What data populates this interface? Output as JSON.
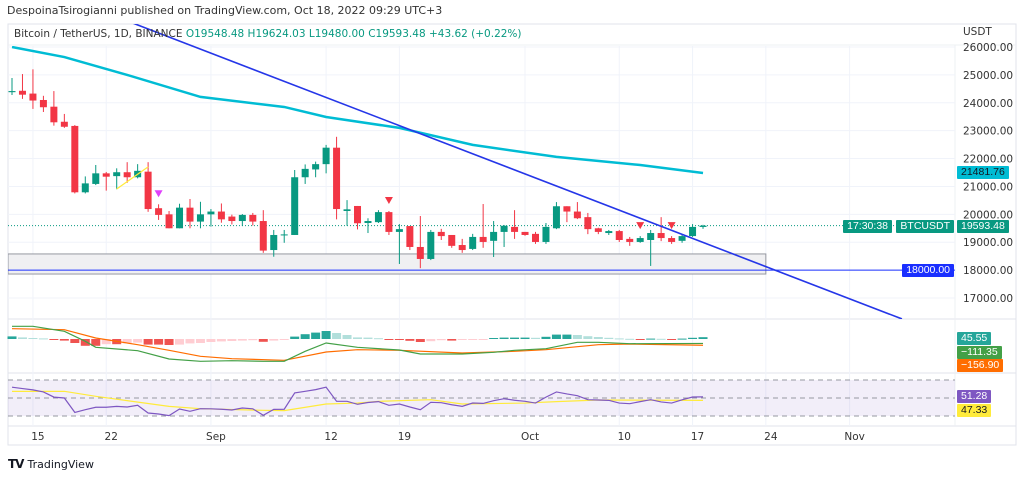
{
  "publish_line": "DespoinaTsirogianni published on TradingView.com, Oct 18, 2022 09:29 UTC+3",
  "header": {
    "symbol": "Bitcoin / TetherUS, 1D, BINANCE",
    "open": "O19548.48",
    "high": "H19624.03",
    "low": "L19480.00",
    "close": "C19593.48",
    "change": "+43.62 (+0.22%)"
  },
  "price_axis": {
    "currency": "USDT",
    "ticks": [
      "26000.00",
      "25000.00",
      "24000.00",
      "23000.00",
      "22000.00",
      "21000.00",
      "20000.00",
      "19000.00",
      "18000.00",
      "17000.00"
    ]
  },
  "time_axis": {
    "ticks": [
      {
        "date": "2022-08-15",
        "label": "15"
      },
      {
        "date": "2022-08-22",
        "label": "22"
      },
      {
        "date": "2022-09-01",
        "label": "Sep"
      },
      {
        "date": "2022-09-12",
        "label": "12"
      },
      {
        "date": "2022-09-19",
        "label": "19"
      },
      {
        "date": "2022-10-01",
        "label": "Oct"
      },
      {
        "date": "2022-10-10",
        "label": "10"
      },
      {
        "date": "2022-10-17",
        "label": "17"
      },
      {
        "date": "2022-10-24",
        "label": "24"
      },
      {
        "date": "2022-11-01",
        "label": "Nov"
      }
    ]
  },
  "labels": {
    "ema": "21481.76",
    "symbol": "BTCUSDT",
    "last_price": "19593.48",
    "countdown": "17:30:38",
    "support": "18000.00",
    "macd_hist": "45.55",
    "macd": "−111.35",
    "signal": "−156.90",
    "rsi": "51.28",
    "rsi_ma": "47.33"
  },
  "colors": {
    "up": "#089981",
    "down": "#f23645",
    "ema": "#00bcd4",
    "trendline": "#2536e8",
    "support_line": "#1a2fff",
    "macd": "#43a047",
    "signal": "#ff6d00",
    "hist_up_strong": "#26a69a",
    "hist_up_weak": "#b2dfdb",
    "hist_down_strong": "#ef5350",
    "hist_down_weak": "#ffcdd2",
    "rsi": "#7e57c2",
    "rsi_ma": "#ffeb3b",
    "signal_marker_sell": "#f23645",
    "signal_marker_magenta": "#e040fb"
  },
  "footer": {
    "brand": "TradingView",
    "logo": "TV"
  },
  "chart_data": {
    "type": "candlestick",
    "ylim": [
      16500,
      26200
    ],
    "candles": [
      [
        "2022-08-13",
        24380,
        24890,
        24280,
        24420
      ],
      [
        "2022-08-14",
        24430,
        25030,
        24140,
        24290
      ],
      [
        "2022-08-15",
        24330,
        25200,
        23780,
        24080
      ],
      [
        "2022-08-16",
        24100,
        24250,
        23670,
        23840
      ],
      [
        "2022-08-17",
        23860,
        24420,
        23180,
        23300
      ],
      [
        "2022-08-18",
        23320,
        23600,
        23100,
        23140
      ],
      [
        "2022-08-19",
        23170,
        23200,
        20750,
        20790
      ],
      [
        "2022-08-20",
        20790,
        21360,
        20750,
        21110
      ],
      [
        "2022-08-21",
        21090,
        21770,
        21050,
        21470
      ],
      [
        "2022-08-22",
        21470,
        21520,
        20850,
        21350
      ],
      [
        "2022-08-23",
        21370,
        21650,
        20900,
        21510
      ],
      [
        "2022-08-24",
        21510,
        21870,
        21130,
        21330
      ],
      [
        "2022-08-25",
        21330,
        21800,
        21290,
        21560
      ],
      [
        "2022-08-26",
        21530,
        21870,
        20090,
        20190
      ],
      [
        "2022-08-27",
        20220,
        20360,
        19800,
        19980
      ],
      [
        "2022-08-28",
        20000,
        20120,
        19500,
        19500
      ],
      [
        "2022-08-29",
        19500,
        20380,
        19500,
        20240
      ],
      [
        "2022-08-30",
        20240,
        20550,
        19500,
        19740
      ],
      [
        "2022-08-31",
        19740,
        20450,
        19500,
        20000
      ],
      [
        "2022-09-01",
        20000,
        20190,
        19560,
        20100
      ],
      [
        "2022-09-02",
        20100,
        20390,
        19700,
        19820
      ],
      [
        "2022-09-03",
        19920,
        19990,
        19640,
        19760
      ],
      [
        "2022-09-04",
        19760,
        20010,
        19580,
        19980
      ],
      [
        "2022-09-05",
        19980,
        20050,
        19600,
        19740
      ],
      [
        "2022-09-06",
        19760,
        20150,
        18620,
        18700
      ],
      [
        "2022-09-07",
        18720,
        19440,
        18480,
        19260
      ],
      [
        "2022-09-08",
        19260,
        19440,
        18980,
        19280
      ],
      [
        "2022-09-09",
        19260,
        21590,
        19260,
        21330
      ],
      [
        "2022-09-10",
        21330,
        21790,
        21090,
        21630
      ],
      [
        "2022-09-11",
        21610,
        21890,
        21330,
        21800
      ],
      [
        "2022-09-12",
        21800,
        22490,
        21470,
        22390
      ],
      [
        "2022-09-13",
        22390,
        22780,
        19820,
        20190
      ],
      [
        "2022-09-14",
        20120,
        20510,
        19590,
        20180
      ],
      [
        "2022-09-15",
        20300,
        20300,
        19460,
        19680
      ],
      [
        "2022-09-16",
        19690,
        19860,
        19330,
        19760
      ],
      [
        "2022-09-17",
        19720,
        20150,
        19690,
        20080
      ],
      [
        "2022-09-18",
        20080,
        20120,
        19260,
        19370
      ],
      [
        "2022-09-19",
        19370,
        19650,
        18220,
        19470
      ],
      [
        "2022-09-20",
        19580,
        19580,
        18720,
        18830
      ],
      [
        "2022-09-21",
        18830,
        19940,
        18070,
        18400
      ],
      [
        "2022-09-22",
        18400,
        19440,
        18360,
        19370
      ],
      [
        "2022-09-23",
        19370,
        19480,
        19080,
        19220
      ],
      [
        "2022-09-24",
        19260,
        19260,
        18800,
        18870
      ],
      [
        "2022-09-25",
        18900,
        19120,
        18620,
        18720
      ],
      [
        "2022-09-26",
        18760,
        19300,
        18720,
        19190
      ],
      [
        "2022-09-27",
        19190,
        20370,
        18800,
        19010
      ],
      [
        "2022-09-28",
        19050,
        19760,
        18470,
        19370
      ],
      [
        "2022-09-29",
        19370,
        19620,
        18830,
        19590
      ],
      [
        "2022-09-30",
        19550,
        20150,
        19120,
        19370
      ],
      [
        "2022-10-01",
        19370,
        19370,
        19230,
        19260
      ],
      [
        "2022-10-02",
        19300,
        19370,
        18940,
        19010
      ],
      [
        "2022-10-03",
        19010,
        19690,
        18940,
        19550
      ],
      [
        "2022-10-04",
        19500,
        20440,
        19470,
        20290
      ],
      [
        "2022-10-05",
        20290,
        20290,
        19720,
        20100
      ],
      [
        "2022-10-06",
        20100,
        20440,
        19830,
        19860
      ],
      [
        "2022-10-07",
        19900,
        20050,
        19290,
        19470
      ],
      [
        "2022-10-08",
        19500,
        19520,
        19290,
        19370
      ],
      [
        "2022-10-09",
        19330,
        19440,
        19260,
        19400
      ],
      [
        "2022-10-10",
        19400,
        19440,
        19010,
        19080
      ],
      [
        "2022-10-11",
        19120,
        19190,
        18870,
        19010
      ],
      [
        "2022-10-12",
        19010,
        19220,
        18980,
        19150
      ],
      [
        "2022-10-13",
        19080,
        19440,
        18150,
        19330
      ],
      [
        "2022-10-14",
        19330,
        19900,
        19040,
        19150
      ],
      [
        "2022-10-15",
        19150,
        19220,
        18940,
        19010
      ],
      [
        "2022-10-16",
        19050,
        19290,
        18980,
        19220
      ],
      [
        "2022-10-17",
        19220,
        19650,
        19190,
        19550
      ],
      [
        "2022-10-18",
        19548.48,
        19624.03,
        19480.0,
        19593.48
      ]
    ],
    "ema": [
      [
        "2022-08-13",
        26000
      ],
      [
        "2022-08-18",
        25640
      ],
      [
        "2022-08-24",
        25000
      ],
      [
        "2022-08-31",
        24210
      ],
      [
        "2022-09-08",
        23850
      ],
      [
        "2022-09-12",
        23490
      ],
      [
        "2022-09-19",
        23100
      ],
      [
        "2022-09-26",
        22490
      ],
      [
        "2022-10-04",
        22060
      ],
      [
        "2022-10-12",
        21770
      ],
      [
        "2022-10-18",
        21481.76
      ]
    ],
    "trendline": [
      [
        "2022-08-24",
        26935
      ],
      [
        "2022-11-06",
        16250
      ]
    ],
    "support_zone": {
      "from": "2022-08-13",
      "to": "2022-10-24",
      "top": 18580,
      "bottom": 17860
    },
    "support_level": 18000,
    "last_price": 19593.48,
    "drawing_yellow": [
      [
        "2022-08-23",
        20910
      ],
      [
        "2022-08-26",
        21700
      ]
    ],
    "markers": [
      {
        "date": "2022-08-27",
        "kind": "magenta"
      },
      {
        "date": "2022-09-18",
        "kind": "sell"
      },
      {
        "date": "2022-10-12",
        "kind": "sell"
      },
      {
        "date": "2022-10-15",
        "kind": "sell"
      }
    ],
    "macd": {
      "macd": [
        [
          "2022-08-13",
          317
        ],
        [
          "2022-08-15",
          317
        ],
        [
          "2022-08-18",
          192
        ],
        [
          "2022-08-20",
          -58
        ],
        [
          "2022-08-21",
          -208
        ],
        [
          "2022-08-25",
          -292
        ],
        [
          "2022-08-28",
          -500
        ],
        [
          "2022-08-31",
          -558
        ],
        [
          "2022-09-03",
          -542
        ],
        [
          "2022-09-06",
          -558
        ],
        [
          "2022-09-08",
          -558
        ],
        [
          "2022-09-10",
          -308
        ],
        [
          "2022-09-12",
          -100
        ],
        [
          "2022-09-15",
          -208
        ],
        [
          "2022-09-19",
          -275
        ],
        [
          "2022-09-21",
          -375
        ],
        [
          "2022-09-25",
          -375
        ],
        [
          "2022-09-28",
          -333
        ],
        [
          "2022-09-30",
          -283
        ],
        [
          "2022-10-03",
          -242
        ],
        [
          "2022-10-06",
          -83
        ],
        [
          "2022-10-08",
          -83
        ],
        [
          "2022-10-11",
          -117
        ],
        [
          "2022-10-18",
          -111.35
        ]
      ],
      "signal": [
        [
          "2022-08-13",
          258
        ],
        [
          "2022-08-18",
          233
        ],
        [
          "2022-08-21",
          25
        ],
        [
          "2022-08-25",
          -142
        ],
        [
          "2022-08-28",
          -283
        ],
        [
          "2022-08-31",
          -433
        ],
        [
          "2022-09-03",
          -492
        ],
        [
          "2022-09-08",
          -533
        ],
        [
          "2022-09-12",
          -325
        ],
        [
          "2022-09-15",
          -267
        ],
        [
          "2022-09-19",
          -283
        ],
        [
          "2022-09-25",
          -350
        ],
        [
          "2022-09-30",
          -308
        ],
        [
          "2022-10-03",
          -267
        ],
        [
          "2022-10-08",
          -142
        ],
        [
          "2022-10-11",
          -125
        ],
        [
          "2022-10-18",
          -156.9
        ]
      ],
      "hist": [
        65,
        40,
        25,
        15,
        -20,
        -40,
        -100,
        -170,
        -170,
        -130,
        -130,
        -110,
        -90,
        -140,
        -140,
        -150,
        -140,
        -110,
        -100,
        -75,
        -60,
        -50,
        -40,
        -30,
        -70,
        -40,
        -25,
        60,
        120,
        160,
        200,
        150,
        100,
        40,
        35,
        20,
        -10,
        -25,
        -45,
        -75,
        -55,
        -30,
        -40,
        -25,
        -20,
        -5,
        25,
        35,
        35,
        35,
        30,
        55,
        110,
        110,
        100,
        70,
        50,
        30,
        15,
        5,
        -10,
        10,
        5,
        -10,
        10,
        30,
        45.55
      ]
    },
    "rsi": {
      "levels": [
        70,
        50,
        30
      ],
      "values": [
        62,
        60.5,
        59,
        56.7,
        51,
        50,
        34,
        37,
        39.7,
        39.7,
        40.7,
        40,
        41.9,
        33.3,
        32.2,
        30.4,
        37.8,
        35.2,
        38.1,
        38,
        37.5,
        36.7,
        38.9,
        38,
        30.8,
        37.4,
        37.5,
        55.6,
        57.4,
        59.3,
        62,
        46.3,
        46.3,
        43,
        45,
        46,
        41.9,
        43.3,
        40,
        37,
        45.2,
        44.8,
        42.5,
        40.7,
        44.4,
        44,
        47,
        49.2,
        47.5,
        46.3,
        44.4,
        51,
        56.7,
        54.5,
        52.6,
        48.1,
        47.8,
        47.4,
        44.4,
        43.7,
        46,
        48.1,
        45.6,
        44.4,
        48,
        51.1,
        51.28
      ],
      "ma": [
        [
          "2022-08-13",
          57.4
        ],
        [
          "2022-08-18",
          57.4
        ],
        [
          "2022-08-21",
          51.9
        ],
        [
          "2022-08-28",
          40.7
        ],
        [
          "2022-08-31",
          38.1
        ],
        [
          "2022-09-06",
          36.3
        ],
        [
          "2022-09-08",
          36
        ],
        [
          "2022-09-12",
          43.3
        ],
        [
          "2022-09-15",
          44.4
        ],
        [
          "2022-09-17",
          46.3
        ],
        [
          "2022-09-22",
          48.1
        ],
        [
          "2022-09-25",
          43.3
        ],
        [
          "2022-10-01",
          44.4
        ],
        [
          "2022-10-04",
          46
        ],
        [
          "2022-10-08",
          47.8
        ],
        [
          "2022-10-18",
          47.33
        ]
      ]
    }
  }
}
